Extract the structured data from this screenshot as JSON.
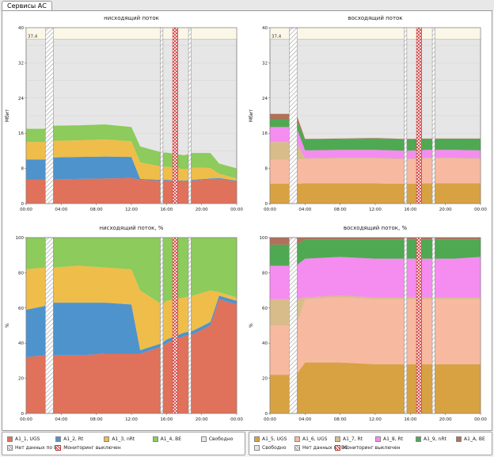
{
  "tab_label": "Сервисы АС",
  "colors": {
    "A1_1, UGS": "#e0715a",
    "A1_2, Rt": "#4f93cc",
    "A1_3, nRt": "#efbd4a",
    "A1_4, BE": "#8ccb5c",
    "A1_5, UGS": "#d8a243",
    "A1_6, UGS": "#f7b9a0",
    "A1_7, Rt": "#d8bd8a",
    "A1_8, Rt": "#f58cf0",
    "A1_9, nRt": "#4fa952",
    "A1_A, BE": "#b0705a",
    "Свободно": "#e6e6e6"
  },
  "chart_data": [
    {
      "id": "down-mbit",
      "type": "area",
      "stacked": true,
      "title": "нисходящий поток",
      "ylabel": "Мбит",
      "ylim": [
        0,
        40
      ],
      "yticks": [
        0,
        8,
        16,
        24,
        32,
        40
      ],
      "xticks": [
        "00:00",
        "04:00",
        "08:00",
        "12:00",
        "16:00",
        "20:00",
        "00:00"
      ],
      "xlim_hours": [
        0,
        24
      ],
      "max_label": "37,4",
      "max_value": 37.4,
      "x": [
        0,
        2,
        3,
        6,
        9,
        12,
        13,
        15.5,
        16,
        18,
        19,
        21,
        22,
        24
      ],
      "series": [
        {
          "name": "A1_1, UGS",
          "values": [
            5.5,
            5.5,
            5.5,
            5.6,
            5.7,
            5.8,
            5.4,
            5.2,
            5.2,
            5.0,
            5.2,
            5.5,
            5.6,
            5.0
          ]
        },
        {
          "name": "A1_2, Rt",
          "values": [
            4.5,
            4.5,
            5.0,
            5.0,
            5.0,
            4.8,
            0.2,
            0.2,
            0.2,
            0.2,
            0.2,
            0.2,
            0.2,
            0.2
          ]
        },
        {
          "name": "A1_3, nRt",
          "values": [
            4.0,
            4.0,
            3.8,
            3.8,
            3.9,
            3.6,
            3.8,
            3.0,
            3.0,
            2.6,
            2.8,
            2.4,
            1.0,
            0.5
          ]
        },
        {
          "name": "A1_4, BE",
          "values": [
            3.0,
            3.0,
            3.4,
            3.4,
            3.4,
            3.2,
            3.6,
            3.2,
            3.2,
            3.2,
            3.3,
            3.4,
            2.3,
            2.3
          ]
        }
      ],
      "gaps": [
        {
          "type": "no_data",
          "from": 2.2,
          "to": 3.1
        },
        {
          "type": "no_data",
          "from": 15.3,
          "to": 15.6
        },
        {
          "type": "monitoring_off",
          "from": 16.7,
          "to": 17.3
        },
        {
          "type": "no_data",
          "from": 18.5,
          "to": 18.8
        }
      ]
    },
    {
      "id": "up-mbit",
      "type": "area",
      "stacked": true,
      "title": "восходящий поток",
      "ylabel": "Мбит",
      "ylim": [
        0,
        40
      ],
      "yticks": [
        0,
        8,
        16,
        24,
        32,
        40
      ],
      "xticks": [
        "00:00",
        "04:00",
        "08:00",
        "12:00",
        "16:00",
        "20:00",
        "00:00"
      ],
      "xlim_hours": [
        0,
        24
      ],
      "max_label": "37,4",
      "max_value": 37.4,
      "x": [
        0,
        2,
        3,
        4,
        8,
        12,
        15.5,
        18,
        21,
        24
      ],
      "series": [
        {
          "name": "A1_5, UGS",
          "values": [
            4.5,
            4.5,
            4.5,
            4.6,
            4.6,
            4.6,
            4.5,
            4.6,
            4.6,
            4.6
          ]
        },
        {
          "name": "A1_6, UGS",
          "values": [
            5.5,
            5.5,
            5.5,
            5.5,
            5.6,
            5.6,
            5.5,
            5.6,
            5.6,
            5.5
          ]
        },
        {
          "name": "A1_7, Rt",
          "values": [
            4.0,
            4.0,
            4.0,
            0.2,
            0.2,
            0.2,
            0.2,
            0.2,
            0.2,
            0.2
          ]
        },
        {
          "name": "A1_8, Rt",
          "values": [
            3.4,
            3.4,
            3.4,
            1.8,
            1.8,
            1.8,
            1.8,
            1.8,
            1.8,
            1.8
          ]
        },
        {
          "name": "A1_9, nRt",
          "values": [
            1.8,
            1.8,
            1.8,
            2.5,
            2.5,
            2.6,
            2.6,
            2.5,
            2.5,
            2.6
          ]
        },
        {
          "name": "A1_A, BE",
          "values": [
            1.2,
            1.2,
            1.2,
            0.1,
            0.1,
            0.1,
            0.1,
            0.1,
            0.1,
            0.1
          ]
        }
      ],
      "gaps": [
        {
          "type": "no_data",
          "from": 2.2,
          "to": 3.1
        },
        {
          "type": "no_data",
          "from": 15.3,
          "to": 15.6
        },
        {
          "type": "monitoring_off",
          "from": 16.7,
          "to": 17.3
        },
        {
          "type": "no_data",
          "from": 18.5,
          "to": 18.8
        }
      ]
    },
    {
      "id": "down-pct",
      "type": "area",
      "stacked": true,
      "title": "нисходящий поток, %",
      "ylabel": "%",
      "ylim": [
        0,
        100
      ],
      "yticks": [
        0,
        20,
        40,
        60,
        80,
        100
      ],
      "xticks": [
        "00:00",
        "04:00",
        "08:00",
        "12:00",
        "16:00",
        "20:00",
        "00:00"
      ],
      "xlim_hours": [
        0,
        24
      ],
      "x": [
        0,
        2,
        3,
        6,
        9,
        12,
        13,
        15.5,
        16,
        18,
        19,
        21,
        22,
        24
      ],
      "series": [
        {
          "name": "A1_1, UGS",
          "values": [
            32,
            33,
            33,
            33,
            34,
            34,
            34,
            38,
            40,
            44,
            45,
            50,
            65,
            62
          ]
        },
        {
          "name": "A1_2, Rt",
          "values": [
            27,
            28,
            30,
            30,
            29,
            28,
            2,
            2,
            2,
            2,
            2,
            2,
            2,
            2
          ]
        },
        {
          "name": "A1_3, nRt",
          "values": [
            23,
            22,
            20,
            21,
            20,
            20,
            34,
            22,
            22,
            20,
            20,
            18,
            2,
            2
          ]
        },
        {
          "name": "A1_4, BE",
          "values": [
            18,
            17,
            17,
            16,
            17,
            18,
            30,
            38,
            36,
            34,
            33,
            30,
            31,
            34
          ]
        }
      ],
      "gaps": [
        {
          "type": "no_data",
          "from": 2.2,
          "to": 3.1
        },
        {
          "type": "no_data",
          "from": 15.3,
          "to": 15.6
        },
        {
          "type": "monitoring_off",
          "from": 16.7,
          "to": 17.3
        },
        {
          "type": "no_data",
          "from": 18.5,
          "to": 18.8
        }
      ]
    },
    {
      "id": "up-pct",
      "type": "area",
      "stacked": true,
      "title": "восходящий поток, %",
      "ylabel": "%",
      "ylim": [
        0,
        100
      ],
      "yticks": [
        0,
        20,
        40,
        60,
        80,
        100
      ],
      "xticks": [
        "00:00",
        "04:00",
        "08:00",
        "12:00",
        "16:00",
        "20:00",
        "00:00"
      ],
      "xlim_hours": [
        0,
        24
      ],
      "x": [
        0,
        2,
        3,
        4,
        8,
        12,
        15.5,
        18,
        21,
        24
      ],
      "series": [
        {
          "name": "A1_5, UGS",
          "values": [
            22,
            22,
            22,
            29,
            29,
            28,
            28,
            28,
            28,
            28
          ]
        },
        {
          "name": "A1_6, UGS",
          "values": [
            28,
            28,
            28,
            36,
            37,
            37,
            37,
            37,
            37,
            37
          ]
        },
        {
          "name": "A1_7, Rt",
          "values": [
            15,
            15,
            15,
            1,
            1,
            1,
            1,
            1,
            1,
            1
          ]
        },
        {
          "name": "A1_8, Rt",
          "values": [
            19,
            19,
            19,
            22,
            22,
            22,
            22,
            22,
            22,
            23
          ]
        },
        {
          "name": "A1_9, nRt",
          "values": [
            12,
            12,
            12,
            11,
            10,
            11,
            11,
            11,
            11,
            10
          ]
        },
        {
          "name": "A1_A, BE",
          "values": [
            4,
            4,
            4,
            1,
            1,
            1,
            1,
            1,
            1,
            1
          ]
        }
      ],
      "gaps": [
        {
          "type": "no_data",
          "from": 2.2,
          "to": 3.1
        },
        {
          "type": "no_data",
          "from": 15.3,
          "to": 15.6
        },
        {
          "type": "monitoring_off",
          "from": 16.7,
          "to": 17.3
        },
        {
          "type": "no_data",
          "from": 18.5,
          "to": 18.8
        }
      ]
    }
  ],
  "legend_left": [
    {
      "label": "A1_1, UGS",
      "kind": "fill"
    },
    {
      "label": "A1_2, Rt",
      "kind": "fill"
    },
    {
      "label": "A1_3, nRt",
      "kind": "fill"
    },
    {
      "label": "A1_4, BE",
      "kind": "fill"
    },
    {
      "label": "Свободно",
      "kind": "free"
    },
    {
      "label": "Нет данных по БС",
      "kind": "no_data"
    },
    {
      "label": "Мониторинг выключен",
      "kind": "monitoring_off"
    }
  ],
  "legend_right": [
    {
      "label": "A1_5, UGS",
      "kind": "fill"
    },
    {
      "label": "A1_6, UGS",
      "kind": "fill"
    },
    {
      "label": "A1_7, Rt",
      "kind": "fill"
    },
    {
      "label": "A1_8, Rt",
      "kind": "fill"
    },
    {
      "label": "A1_9, nRt",
      "kind": "fill"
    },
    {
      "label": "A1_A, BE",
      "kind": "fill"
    },
    {
      "label": "Свободно",
      "kind": "free"
    },
    {
      "label": "Нет данных по БС",
      "kind": "no_data"
    },
    {
      "label": "Мониторинг выключен",
      "kind": "monitoring_off"
    }
  ]
}
